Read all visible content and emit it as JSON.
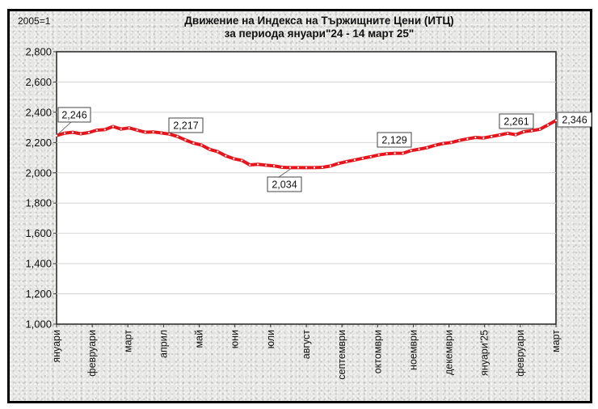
{
  "chart_data": {
    "type": "line",
    "title": "Движение на Индекса на Тържищните Цени (ИТЦ)",
    "subtitle": "за периода януари\"24 - 14 март 25\"",
    "ylabel": "2005=1",
    "xlabel": "",
    "ylim": [
      1000,
      2800
    ],
    "yticks": [
      "1,000",
      "1,200",
      "1,400",
      "1,600",
      "1,800",
      "2,000",
      "2,200",
      "2,400",
      "2,600",
      "2,800"
    ],
    "grid": true,
    "legend": "none",
    "categories": [
      "януари",
      "февруари",
      "март",
      "април",
      "май",
      "юни",
      "юли",
      "август",
      "септември",
      "октомври",
      "ноември",
      "декември",
      "януари'25",
      "февруари",
      "март"
    ],
    "series": [
      {
        "name": "ИТЦ",
        "color": "#e8141c",
        "values": [
          2246,
          2262,
          2268,
          2258,
          2266,
          2282,
          2285,
          2306,
          2289,
          2297,
          2282,
          2268,
          2270,
          2263,
          2256,
          2240,
          2217,
          2196,
          2183,
          2155,
          2140,
          2112,
          2093,
          2082,
          2052,
          2056,
          2050,
          2046,
          2036,
          2034,
          2034,
          2034,
          2034,
          2036,
          2045,
          2062,
          2074,
          2085,
          2096,
          2106,
          2118,
          2126,
          2129,
          2129,
          2147,
          2156,
          2166,
          2182,
          2194,
          2200,
          2214,
          2224,
          2234,
          2230,
          2240,
          2250,
          2261,
          2252,
          2272,
          2278,
          2288,
          2316,
          2346
        ]
      }
    ],
    "annotations": [
      {
        "label": "2,246",
        "index": 0
      },
      {
        "label": "2,217",
        "index": 16
      },
      {
        "label": "2,034",
        "index": 29
      },
      {
        "label": "2,129",
        "index": 43
      },
      {
        "label": "2,261",
        "index": 56
      },
      {
        "label": "2,346",
        "index": 62
      }
    ]
  }
}
